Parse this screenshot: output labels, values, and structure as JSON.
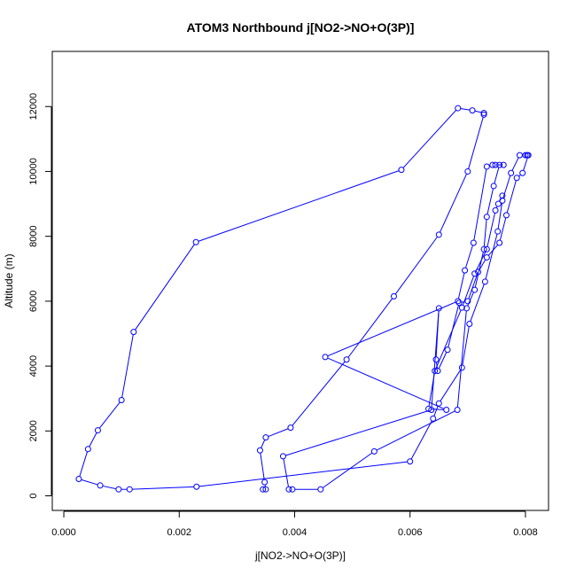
{
  "chart_data": {
    "type": "line",
    "title": "ATOM3 Northbound j[NO2->NO+O(3P)]",
    "xlabel": "j[NO2->NO+O(3P)]",
    "ylabel": "Altitude (m)",
    "xlim": [
      -0.0002,
      0.0084
    ],
    "ylim": [
      -450,
      13700
    ],
    "xticks": [
      0.0,
      0.002,
      0.004,
      0.006,
      0.008
    ],
    "xtick_labels": [
      "0.000",
      "0.002",
      "0.004",
      "0.006",
      "0.008"
    ],
    "yticks": [
      0,
      2000,
      4000,
      6000,
      8000,
      10000,
      12000
    ],
    "ytick_labels": [
      "0",
      "2000",
      "4000",
      "6000",
      "8000",
      "10000",
      "12000"
    ],
    "grid": false,
    "series_color": "#0000ff",
    "markers": "open-circle",
    "series": [
      {
        "x": [
          0.00345,
          0.0035,
          0.00348,
          0.0034,
          0.0035,
          0.00393,
          0.0049,
          0.00572,
          0.0065,
          0.007,
          0.00728,
          0.00728,
          0.00708,
          0.00683,
          0.00585,
          0.00229,
          0.00121,
          0.001,
          0.00059,
          0.00042,
          0.00026,
          0.00063,
          0.00095,
          0.00114,
          0.0023,
          0.006,
          0.0064,
          0.0065,
          0.0069,
          0.00703,
          0.0073,
          0.00752,
          0.0076,
          0.00775,
          0.0079,
          0.008,
          0.00803,
          0.00805,
          0.00795,
          0.00785,
          0.00767,
          0.00755,
          0.00733,
          0.00718,
          0.007,
          0.00685,
          0.00665,
          0.00648,
          0.00645,
          0.0065,
          0.00637,
          0.0038,
          0.0039,
          0.00396,
          0.00445,
          0.00538,
          0.00682,
          0.00698,
          0.00712,
          0.00728,
          0.00733,
          0.00745,
          0.00755,
          0.00762,
          0.00748,
          0.00743,
          0.00733,
          0.0071,
          0.00695,
          0.00683,
          0.00453,
          0.00663,
          0.00632,
          0.00643,
          0.0069,
          0.00712,
          0.00733,
          0.00748,
          0.00753,
          0.0076
        ],
        "y": [
          200,
          200,
          420,
          1400,
          1800,
          2100,
          4200,
          6150,
          8050,
          10000,
          11750,
          11800,
          11880,
          11950,
          10050,
          7820,
          5050,
          2950,
          2020,
          1440,
          520,
          320,
          200,
          200,
          280,
          1060,
          2380,
          2850,
          3950,
          5300,
          6600,
          8150,
          9100,
          9950,
          10500,
          10500,
          10500,
          10500,
          9950,
          9800,
          8650,
          7800,
          7350,
          6900,
          6000,
          5950,
          4500,
          3850,
          4200,
          5780,
          2650,
          1220,
          200,
          200,
          200,
          1370,
          2650,
          5780,
          6350,
          7600,
          8600,
          9550,
          10200,
          10200,
          10200,
          10200,
          10150,
          7800,
          6950,
          6000,
          4280,
          2650,
          2680,
          3850,
          5800,
          6850,
          7600,
          8800,
          9000,
          9250
        ]
      }
    ]
  }
}
